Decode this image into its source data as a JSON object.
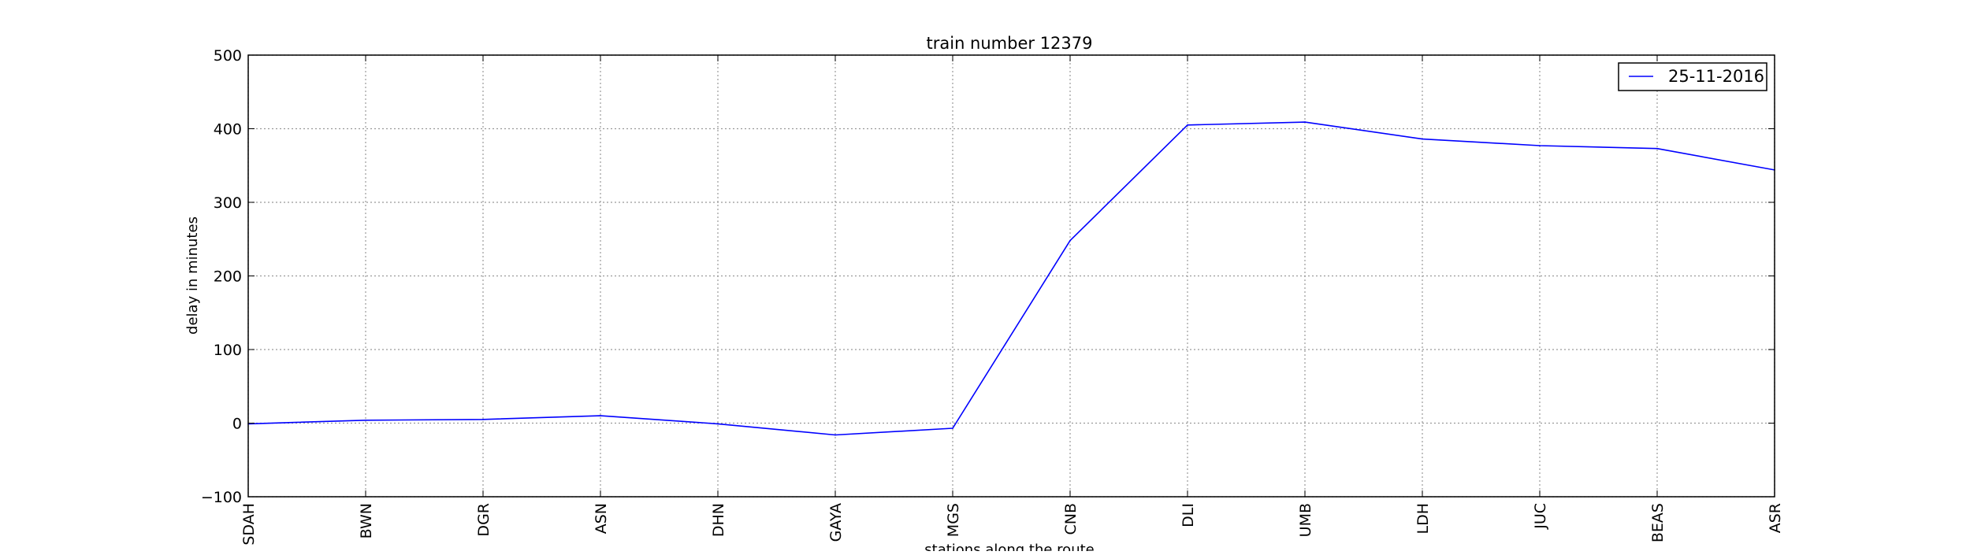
{
  "chart_data": {
    "type": "line",
    "title": "train number 12379",
    "xlabel": "stations along the route",
    "ylabel": "delay in minutes",
    "categories": [
      "SDAH",
      "BWN",
      "DGR",
      "ASN",
      "DHN",
      "GAYA",
      "MGS",
      "CNB",
      "DLI",
      "UMB",
      "LDH",
      "JUC",
      "BEAS",
      "ASR"
    ],
    "series": [
      {
        "name": "25-11-2016",
        "color": "#0000ff",
        "values": [
          -1,
          4,
          5,
          10,
          -1,
          -16,
          -7,
          248,
          405,
          409,
          386,
          377,
          373,
          344
        ]
      }
    ],
    "ylim": [
      -100,
      500
    ],
    "yticks": [
      -100,
      0,
      100,
      200,
      300,
      400,
      500
    ],
    "grid": true,
    "legend_position": "top-right"
  }
}
